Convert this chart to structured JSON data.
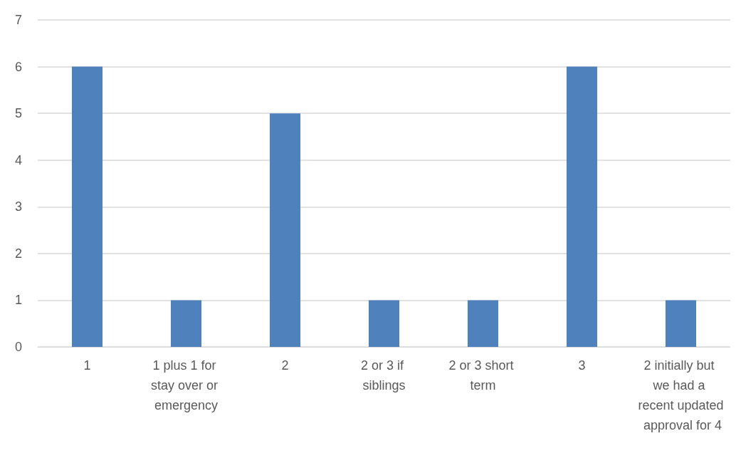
{
  "chart_data": {
    "type": "bar",
    "categories": [
      "1",
      "1 plus 1 for stay over or emergency",
      "2",
      "2 or 3 if siblings",
      "2 or 3 short term",
      "3",
      "2 initially but we had a recent updated approval for 4"
    ],
    "values": [
      6,
      1,
      5,
      1,
      1,
      6,
      1
    ],
    "color": "#4f81bd",
    "ylim": [
      0,
      7
    ],
    "yticks": [
      0,
      1,
      2,
      3,
      4,
      5,
      6,
      7
    ],
    "grid": "y"
  }
}
